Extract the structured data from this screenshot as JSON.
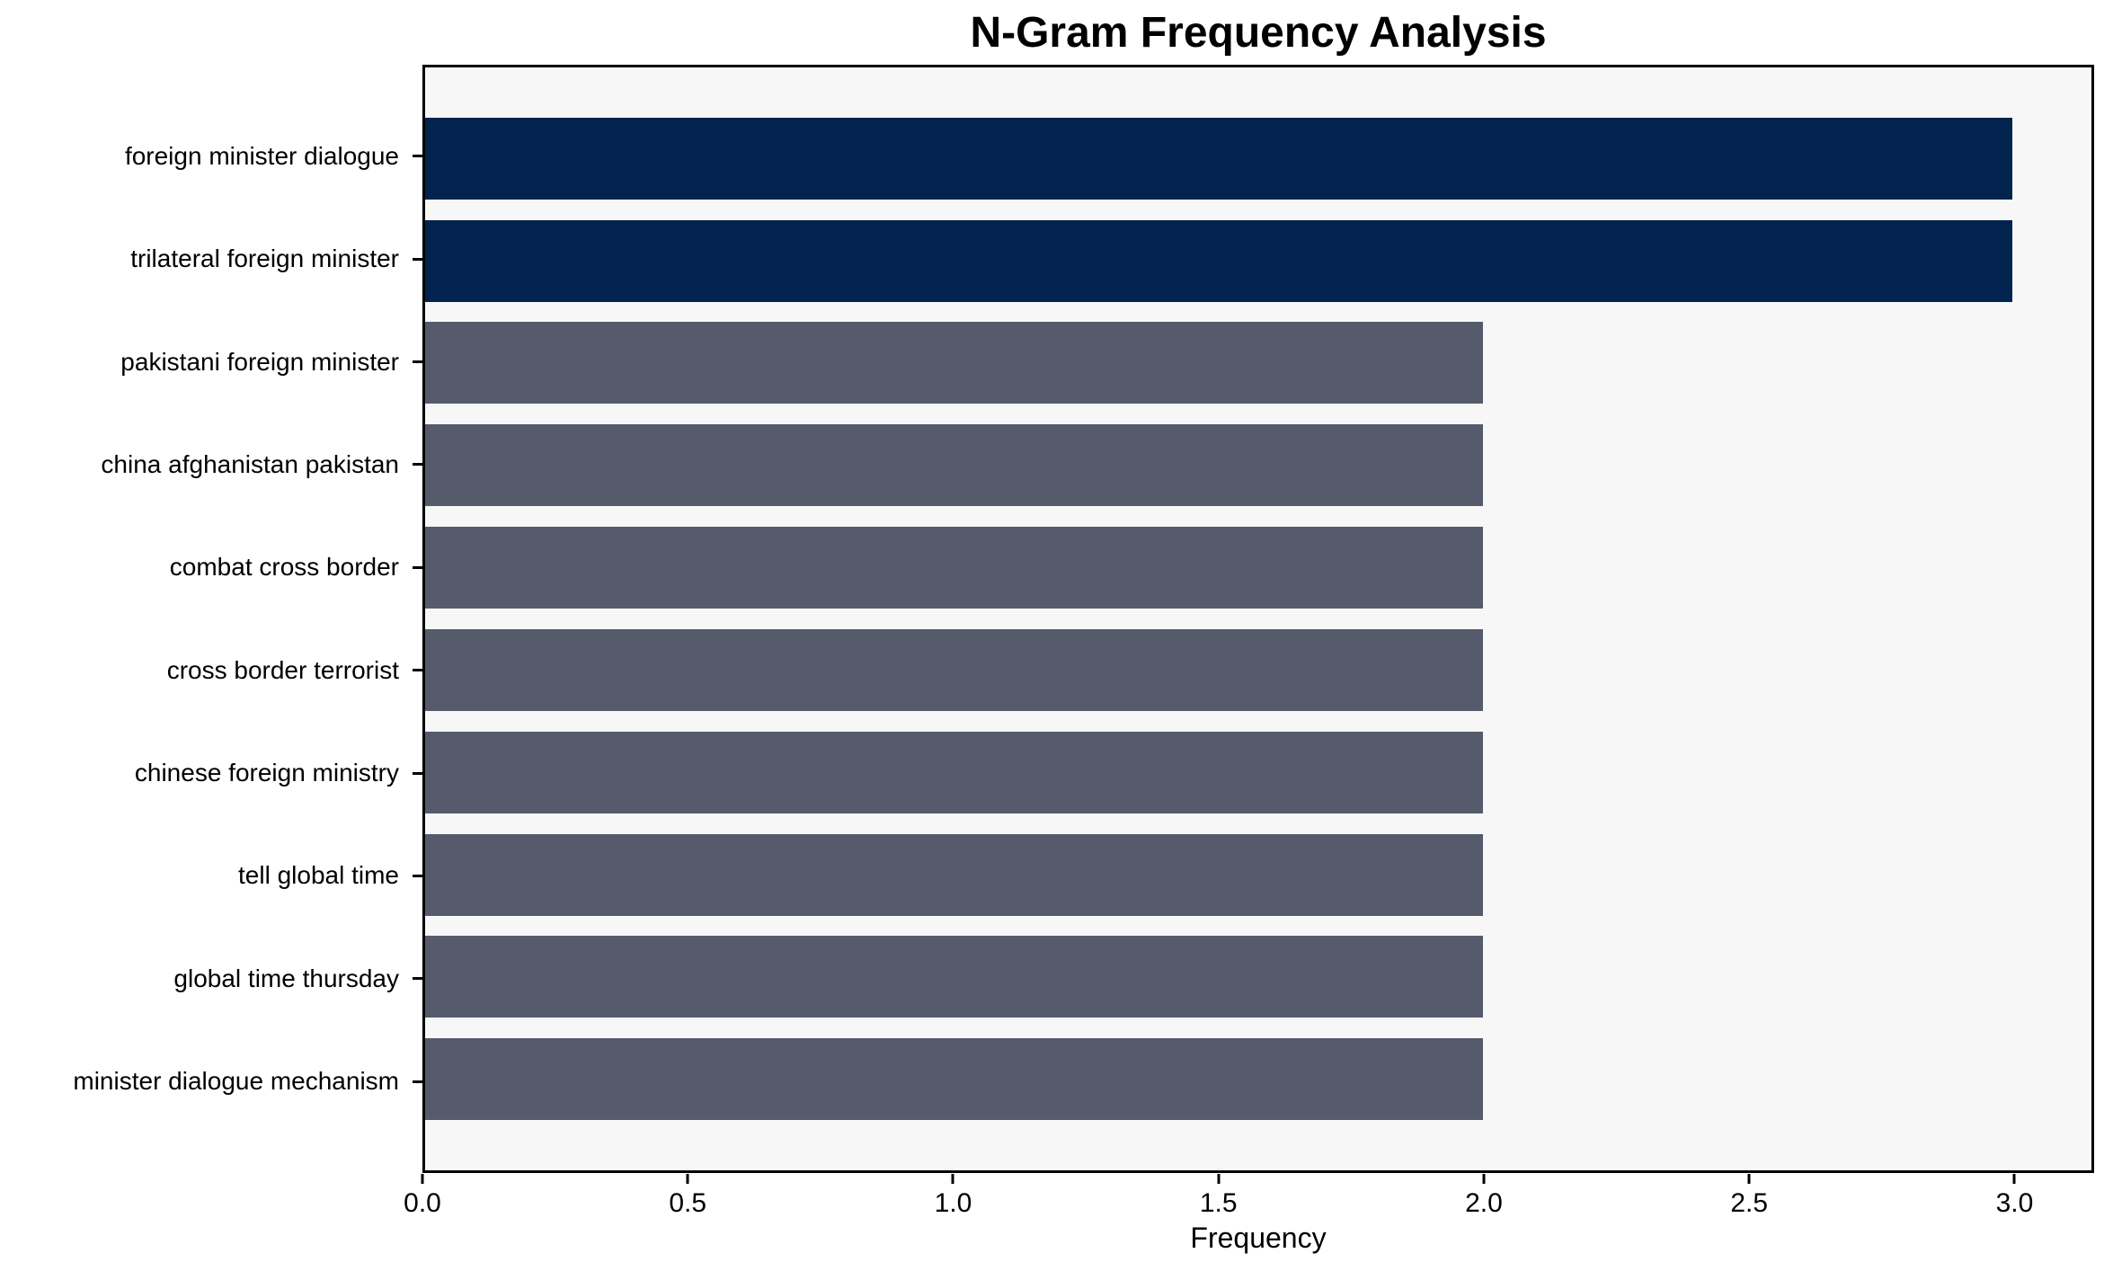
{
  "chart_data": {
    "type": "bar",
    "orientation": "horizontal",
    "title": "N-Gram Frequency Analysis",
    "xlabel": "Frequency",
    "ylabel": "",
    "categories": [
      "foreign minister dialogue",
      "trilateral foreign minister",
      "pakistani foreign minister",
      "china afghanistan pakistan",
      "combat cross border",
      "cross border terrorist",
      "chinese foreign ministry",
      "tell global time",
      "global time thursday",
      "minister dialogue mechanism"
    ],
    "values": [
      3,
      3,
      2,
      2,
      2,
      2,
      2,
      2,
      2,
      2
    ],
    "bar_colors": [
      "#02234d",
      "#02234d",
      "#565b6b",
      "#565b6b",
      "#565b6b",
      "#565b6b",
      "#565b6b",
      "#565b6b",
      "#565b6b",
      "#565b6b"
    ],
    "xlim": [
      0,
      3.15
    ],
    "xticks": [
      0.0,
      0.5,
      1.0,
      1.5,
      2.0,
      2.5,
      3.0
    ],
    "xtick_labels": [
      "0.0",
      "0.5",
      "1.0",
      "1.5",
      "2.0",
      "2.5",
      "3.0"
    ],
    "grid": false,
    "legend": "none",
    "bar_fraction": 0.8
  },
  "colors": {
    "figure_bg": "#ffffff",
    "plot_bg": "#f7f7f7",
    "spine": "#000000",
    "text": "#000000",
    "highlight_bar": "#02234d",
    "default_bar": "#565b6b"
  }
}
